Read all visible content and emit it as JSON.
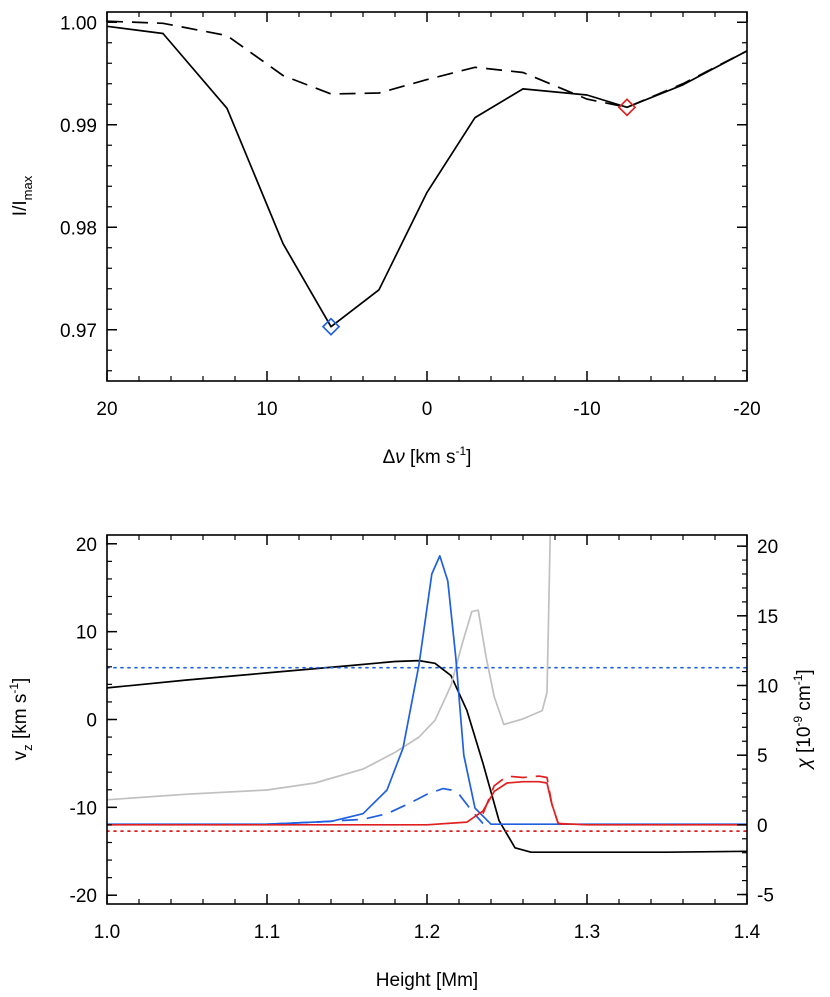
{
  "chart_data": [
    {
      "type": "line",
      "xlabel": "Δν [km s⁻¹]",
      "ylabel": "I/I_max",
      "ylabel_main": "I/I",
      "ylabel_sub": "max",
      "xlabel_main": "Δ",
      "xlabel_nu": "ν",
      "xlabel_unit": " [km s",
      "xlabel_sup": "-1",
      "xlabel_close": "]",
      "xlim": [
        20,
        -20
      ],
      "ylim": [
        0.965,
        1.001
      ],
      "xticks": [
        20,
        10,
        0,
        -10,
        -20
      ],
      "xtick_labels": [
        "20",
        "10",
        "0",
        "-10",
        "-20"
      ],
      "yticks": [
        0.97,
        0.98,
        0.99,
        1.0
      ],
      "ytick_labels": [
        "0.97",
        "0.98",
        "0.99",
        "1.00"
      ],
      "series": [
        {
          "style": "solid",
          "color": "#000000",
          "x": [
            20,
            16.5,
            12.5,
            9,
            6,
            3,
            0,
            -3,
            -6,
            -10,
            -12.5,
            -16,
            -20
          ],
          "y": [
            0.9996,
            0.9989,
            0.9916,
            0.9784,
            0.9703,
            0.9739,
            0.9834,
            0.9907,
            0.9935,
            0.9929,
            0.9917,
            0.9939,
            0.9972
          ]
        },
        {
          "style": "dashed",
          "color": "#000000",
          "x": [
            20,
            16.5,
            12.5,
            9,
            6,
            3,
            0,
            -3,
            -6,
            -10,
            -12.5,
            -16,
            -20
          ],
          "y": [
            1.0001,
            0.9999,
            0.9987,
            0.9948,
            0.993,
            0.9931,
            0.9944,
            0.9956,
            0.9951,
            0.9925,
            0.9917,
            0.994,
            0.9972
          ]
        }
      ],
      "markers": [
        {
          "shape": "diamond",
          "color": "#1f5fe0",
          "x": 6,
          "y": 0.9703
        },
        {
          "shape": "diamond",
          "color": "#e02020",
          "x": -12.5,
          "y": 0.9917
        }
      ]
    },
    {
      "type": "line",
      "xlabel": "Height [Mm]",
      "ylabel": "v_z [km s⁻¹]",
      "ylabel_main": "v",
      "ylabel_sub": "z",
      "ylabel_unit": " [km s",
      "ylabel_sup": "-1",
      "ylabel_close": "]",
      "y2label": "χ [10⁻⁹ cm⁻¹]",
      "y2label_chi": "χ",
      "y2label_unit": " [10",
      "y2label_sup": "-9",
      "y2label_cm": " cm",
      "y2label_sup2": "-1",
      "y2label_close": "]",
      "xlim": [
        1.0,
        1.4
      ],
      "ylim": [
        -21,
        21
      ],
      "y2lim": [
        -5.68,
        20.8
      ],
      "xticks": [
        1.0,
        1.1,
        1.2,
        1.3,
        1.4
      ],
      "xtick_labels": [
        "1.0",
        "1.1",
        "1.2",
        "1.3",
        "1.4"
      ],
      "yticks": [
        -20,
        -10,
        0,
        10,
        20
      ],
      "ytick_labels": [
        "-20",
        "-10",
        "0",
        "10",
        "20"
      ],
      "y2ticks": [
        -5,
        0,
        5,
        10,
        15,
        20
      ],
      "y2tick_labels": [
        "-5",
        "0",
        "5",
        "10",
        "15",
        "20"
      ],
      "series": [
        {
          "axis": "left",
          "style": "solid",
          "color": "#000000",
          "x": [
            1.0,
            1.05,
            1.1,
            1.15,
            1.18,
            1.195,
            1.205,
            1.215,
            1.225,
            1.235,
            1.245,
            1.255,
            1.265,
            1.3,
            1.35,
            1.4
          ],
          "y": [
            3.6,
            4.5,
            5.3,
            6.1,
            6.6,
            6.7,
            6.4,
            5.0,
            1.0,
            -5.0,
            -11.5,
            -14.6,
            -15.1,
            -15.1,
            -15.1,
            -15.0
          ]
        },
        {
          "axis": "left",
          "style": "dotted",
          "color": "#1f5fe0",
          "x": [
            1.0,
            1.4
          ],
          "y": [
            5.9,
            5.9
          ]
        },
        {
          "axis": "left",
          "style": "dotted",
          "color": "#e02020",
          "x": [
            1.0,
            1.4
          ],
          "y": [
            -12.7,
            -12.7
          ]
        },
        {
          "axis": "right",
          "style": "solid",
          "color": "#c0c0c0",
          "x": [
            1.0,
            1.05,
            1.1,
            1.13,
            1.16,
            1.18,
            1.195,
            1.205,
            1.215,
            1.222,
            1.228,
            1.232,
            1.237,
            1.242,
            1.248,
            1.26,
            1.272,
            1.275,
            1.276,
            1.277
          ],
          "y": [
            1.8,
            2.2,
            2.5,
            3.0,
            4.0,
            5.2,
            6.3,
            7.5,
            10.0,
            13.0,
            15.3,
            15.4,
            12.0,
            9.2,
            7.2,
            7.6,
            8.2,
            9.5,
            15.0,
            20.8
          ]
        },
        {
          "axis": "right",
          "style": "solid",
          "color": "#1f5fe0",
          "x": [
            1.0,
            1.1,
            1.14,
            1.16,
            1.175,
            1.185,
            1.195,
            1.203,
            1.208,
            1.213,
            1.218,
            1.223,
            1.23,
            1.24,
            1.4
          ],
          "y": [
            0.05,
            0.05,
            0.25,
            0.8,
            2.5,
            5.5,
            11.5,
            18.0,
            19.3,
            17.5,
            12.0,
            5.0,
            1.2,
            0.05,
            0.05
          ]
        },
        {
          "axis": "right",
          "style": "dashed",
          "color": "#1f5fe0",
          "x": [
            1.1,
            1.13,
            1.16,
            1.175,
            1.19,
            1.2,
            1.21,
            1.215,
            1.22,
            1.228,
            1.235
          ],
          "y": [
            0.05,
            0.2,
            0.4,
            0.8,
            1.6,
            2.2,
            2.6,
            2.5,
            2.2,
            1.0,
            0.1
          ]
        },
        {
          "axis": "right",
          "style": "solid",
          "color": "#e02020",
          "x": [
            1.0,
            1.2,
            1.225,
            1.235,
            1.242,
            1.25,
            1.26,
            1.27,
            1.275,
            1.278,
            1.282,
            1.3,
            1.4
          ],
          "y": [
            0.0,
            0.0,
            0.2,
            1.0,
            2.4,
            3.0,
            3.1,
            3.1,
            3.0,
            1.5,
            0.1,
            0.0,
            0.0
          ]
        },
        {
          "axis": "right",
          "style": "dashed",
          "color": "#e02020",
          "x": [
            1.235,
            1.242,
            1.25,
            1.26,
            1.27,
            1.275,
            1.278,
            1.282,
            1.29
          ],
          "y": [
            0.8,
            2.8,
            3.5,
            3.4,
            3.5,
            3.4,
            1.5,
            0.1,
            0.0
          ]
        }
      ]
    }
  ]
}
